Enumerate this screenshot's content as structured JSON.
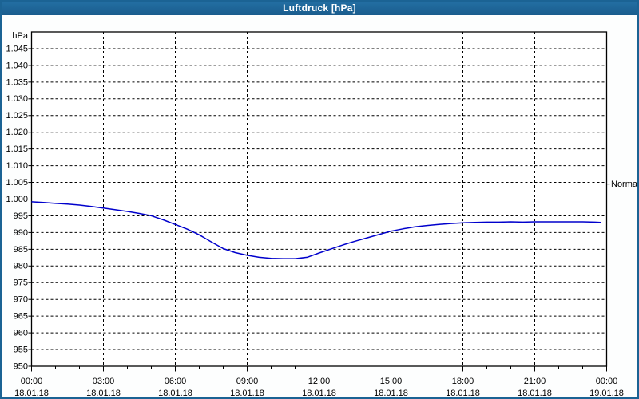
{
  "window": {
    "title": "Luftdruck [hPa]"
  },
  "colors": {
    "titlebar": "#1C6395",
    "window_border": "#1B6394",
    "title_text": "#FFFFFF",
    "plot_background": "#FFFFFF",
    "grid": "#000000",
    "axis_text": "#000000",
    "line": "#0000CC"
  },
  "chart_data": {
    "type": "line",
    "title": "Luftdruck [hPa]",
    "ylabel": "hPa",
    "xlabel": "",
    "ylim": [
      950,
      1050
    ],
    "xlim_hours": [
      0,
      24
    ],
    "grid": "dashed",
    "legend_position": "none",
    "y_ticks": [
      {
        "value": 1045,
        "label": "1.045"
      },
      {
        "value": 1040,
        "label": "1.040"
      },
      {
        "value": 1035,
        "label": "1.035"
      },
      {
        "value": 1030,
        "label": "1.030"
      },
      {
        "value": 1025,
        "label": "1.025"
      },
      {
        "value": 1020,
        "label": "1.020"
      },
      {
        "value": 1015,
        "label": "1.015"
      },
      {
        "value": 1010,
        "label": "1.010"
      },
      {
        "value": 1005,
        "label": "1.005"
      },
      {
        "value": 1000,
        "label": "1.000"
      },
      {
        "value": 995,
        "label": "995"
      },
      {
        "value": 990,
        "label": "990"
      },
      {
        "value": 985,
        "label": "985"
      },
      {
        "value": 980,
        "label": "980"
      },
      {
        "value": 975,
        "label": "975"
      },
      {
        "value": 970,
        "label": "970"
      },
      {
        "value": 965,
        "label": "965"
      },
      {
        "value": 960,
        "label": "960"
      },
      {
        "value": 955,
        "label": "955"
      },
      {
        "value": 950,
        "label": "950"
      }
    ],
    "x_ticks": [
      {
        "hour": 0,
        "time": "00:00",
        "date": "18.01.18"
      },
      {
        "hour": 3,
        "time": "03:00",
        "date": "18.01.18"
      },
      {
        "hour": 6,
        "time": "06:00",
        "date": "18.01.18"
      },
      {
        "hour": 9,
        "time": "09:00",
        "date": "18.01.18"
      },
      {
        "hour": 12,
        "time": "12:00",
        "date": "18.01.18"
      },
      {
        "hour": 15,
        "time": "15:00",
        "date": "18.01.18"
      },
      {
        "hour": 18,
        "time": "18:00",
        "date": "18.01.18"
      },
      {
        "hour": 21,
        "time": "21:00",
        "date": "18.01.18"
      },
      {
        "hour": 24,
        "time": "00:00",
        "date": "19.01.18"
      }
    ],
    "minor_tick_every_hours": 1,
    "normal_marker": {
      "label": "Normal",
      "value": 1004.5
    },
    "series": [
      {
        "name": "Luftdruck",
        "color": "#0000CC",
        "x_hours": [
          0,
          0.5,
          1,
          1.5,
          2,
          2.5,
          3,
          3.5,
          4,
          4.5,
          5,
          5.5,
          6,
          6.5,
          7,
          7.5,
          8,
          8.5,
          9,
          9.5,
          10,
          10.5,
          11,
          11.5,
          12,
          12.5,
          13,
          13.5,
          14,
          14.5,
          15,
          15.5,
          16,
          16.5,
          17,
          17.5,
          18,
          18.5,
          19,
          19.5,
          20,
          20.5,
          21,
          21.5,
          22,
          22.5,
          23,
          23.5,
          23.75
        ],
        "values": [
          999.2,
          999.0,
          998.7,
          998.5,
          998.2,
          997.8,
          997.3,
          996.8,
          996.3,
          995.7,
          995.0,
          993.8,
          992.4,
          991.0,
          989.3,
          987.2,
          985.2,
          984.0,
          983.2,
          982.6,
          982.3,
          982.2,
          982.2,
          982.6,
          983.9,
          985.1,
          986.3,
          987.4,
          988.4,
          989.4,
          990.4,
          991.1,
          991.7,
          992.1,
          992.4,
          992.7,
          992.9,
          993.0,
          993.1,
          993.1,
          993.2,
          993.1,
          993.2,
          993.2,
          993.2,
          993.2,
          993.2,
          993.1,
          993.0
        ]
      }
    ]
  }
}
